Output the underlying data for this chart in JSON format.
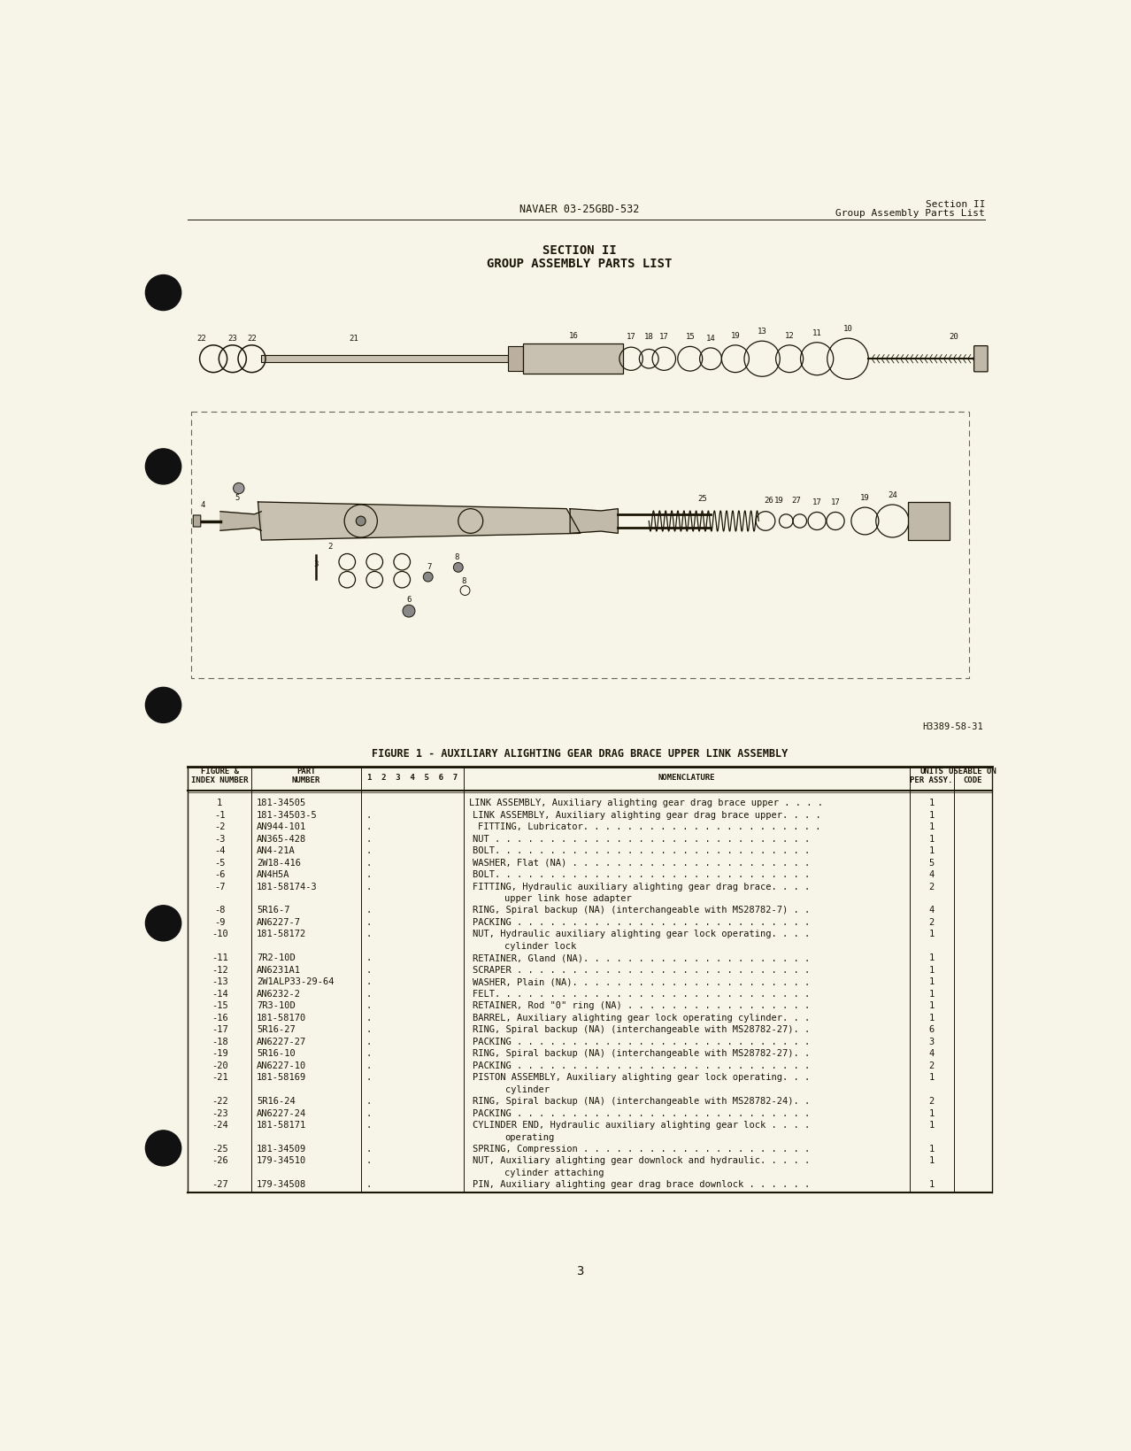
{
  "bg_color": "#f7f4e8",
  "header_doc_number": "NAVAER 03-25GBD-532",
  "header_section": "Section II",
  "header_subsection": "Group Assembly Parts List",
  "section_title": "SECTION II",
  "section_subtitle": "GROUP ASSEMBLY PARTS LIST",
  "figure_caption": "FIGURE 1 - AUXILIARY ALIGHTING GEAR DRAG BRACE UPPER LINK ASSEMBLY",
  "figure_ref": "H3389-58-31",
  "page_number": "3",
  "table_rows": [
    [
      "1",
      "181-34505",
      "",
      "LINK ASSEMBLY, Auxiliary alighting gear drag brace upper . . . .",
      "1",
      false
    ],
    [
      "-1",
      "181-34503-5",
      ".",
      "LINK ASSEMBLY, Auxiliary alighting gear drag brace upper. . . .",
      "1",
      false
    ],
    [
      "-2",
      "AN944-101",
      ". .",
      "FITTING, Lubricator. . . . . . . . . . . . . . . . . . . . . .",
      "1",
      false
    ],
    [
      "-3",
      "AN365-428",
      ".",
      "NUT . . . . . . . . . . . . . . . . . . . . . . . . . . . . .",
      "1",
      false
    ],
    [
      "-4",
      "AN4-21A",
      ".",
      "BOLT. . . . . . . . . . . . . . . . . . . . . . . . . . . . .",
      "1",
      false
    ],
    [
      "-5",
      "2W18-416",
      ".",
      "WASHER, Flat (NA) . . . . . . . . . . . . . . . . . . . . . .",
      "5",
      false
    ],
    [
      "-6",
      "AN4H5A",
      ".",
      "BOLT. . . . . . . . . . . . . . . . . . . . . . . . . . . . .",
      "4",
      false
    ],
    [
      "-7",
      "181-58174-3",
      ".",
      "FITTING, Hydraulic auxiliary alighting gear drag brace. . . .",
      "2",
      true
    ],
    [
      "-8",
      "5R16-7",
      ".",
      "RING, Spiral backup (NA) (interchangeable with MS28782-7) . .",
      "4",
      false
    ],
    [
      "-9",
      "AN6227-7",
      ".",
      "PACKING . . . . . . . . . . . . . . . . . . . . . . . . . . .",
      "2",
      false
    ],
    [
      "-10",
      "181-58172",
      ".",
      "NUT, Hydraulic auxiliary alighting gear lock operating. . . .",
      "1",
      true
    ],
    [
      "-11",
      "7R2-10D",
      ".",
      "RETAINER, Gland (NA). . . . . . . . . . . . . . . . . . . . .",
      "1",
      false
    ],
    [
      "-12",
      "AN6231A1",
      ".",
      "SCRAPER . . . . . . . . . . . . . . . . . . . . . . . . . . .",
      "1",
      false
    ],
    [
      "-13",
      "2W1ALP33-29-64",
      ".",
      "WASHER, Plain (NA). . . . . . . . . . . . . . . . . . . . . .",
      "1",
      false
    ],
    [
      "-14",
      "AN6232-2",
      ".",
      "FELT. . . . . . . . . . . . . . . . . . . . . . . . . . . . .",
      "1",
      false
    ],
    [
      "-15",
      "7R3-10D",
      ".",
      "RETAINER, Rod \"0\" ring (NA) . . . . . . . . . . . . . . . . .",
      "1",
      false
    ],
    [
      "-16",
      "181-58170",
      ".",
      "BARREL, Auxiliary alighting gear lock operating cylinder. . .",
      "1",
      false
    ],
    [
      "-17",
      "5R16-27",
      ".",
      "RING, Spiral backup (NA) (interchangeable with MS28782-27). .",
      "6",
      false
    ],
    [
      "-18",
      "AN6227-27",
      ".",
      "PACKING . . . . . . . . . . . . . . . . . . . . . . . . . . .",
      "3",
      false
    ],
    [
      "-19",
      "5R16-10",
      ".",
      "RING, Spiral backup (NA) (interchangeable with MS28782-27). .",
      "4",
      false
    ],
    [
      "-20",
      "AN6227-10",
      ".",
      "PACKING . . . . . . . . . . . . . . . . . . . . . . . . . . .",
      "2",
      false
    ],
    [
      "-21",
      "181-58169",
      ".",
      "PISTON ASSEMBLY, Auxiliary alighting gear lock operating. . .",
      "1",
      true
    ],
    [
      "-22",
      "5R16-24",
      ".",
      "RING, Spiral backup (NA) (interchangeable with MS28782-24). .",
      "2",
      false
    ],
    [
      "-23",
      "AN6227-24",
      ".",
      "PACKING . . . . . . . . . . . . . . . . . . . . . . . . . . .",
      "1",
      false
    ],
    [
      "-24",
      "181-58171",
      ".",
      "CYLINDER END, Hydraulic auxiliary alighting gear lock . . . .",
      "1",
      true
    ],
    [
      "-25",
      "181-34509",
      ".",
      "SPRING, Compression . . . . . . . . . . . . . . . . . . . . .",
      "1",
      false
    ],
    [
      "-26",
      "179-34510",
      ".",
      "NUT, Auxiliary alighting gear downlock and hydraulic. . . . .",
      "1",
      true
    ],
    [
      "-27",
      "179-34508",
      ".",
      "PIN, Auxiliary alighting gear drag brace downlock . . . . . .",
      "1",
      false
    ]
  ],
  "continuation_lines": {
    "-7": "      upper link hose adapter",
    "-10": "      cylinder lock",
    "-21": "      cylinder",
    "-24": "      operating",
    "-26": "      cylinder attaching"
  }
}
